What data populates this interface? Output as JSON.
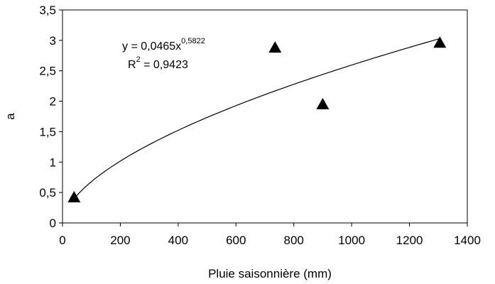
{
  "chart_data": {
    "type": "scatter",
    "xlabel": "Pluie saisonnière (mm)",
    "ylabel": "a",
    "xlim": [
      0,
      1400
    ],
    "ylim": [
      0,
      3.5
    ],
    "x_ticks": [
      "0",
      "200",
      "400",
      "600",
      "800",
      "1000",
      "1200",
      "1400"
    ],
    "y_ticks": [
      "0",
      "0,5",
      "1",
      "1,5",
      "2",
      "2,5",
      "3",
      "3,5"
    ],
    "grid": false,
    "marker": "triangle",
    "marker_color": "#000000",
    "series": [
      {
        "points": [
          {
            "x": 40,
            "y": 0.42
          },
          {
            "x": 735,
            "y": 2.88
          },
          {
            "x": 900,
            "y": 1.95
          },
          {
            "x": 1305,
            "y": 2.96
          }
        ]
      }
    ],
    "trendline": {
      "type": "power",
      "coefficient": 0.0465,
      "exponent": 0.5822,
      "x_range": [
        40,
        1305
      ],
      "equation_base": "y = 0,0465x",
      "equation_exponent": "0,5822",
      "r2_label": "R",
      "r2_superscript": "2",
      "r2_value_text": " = 0,9423"
    }
  }
}
